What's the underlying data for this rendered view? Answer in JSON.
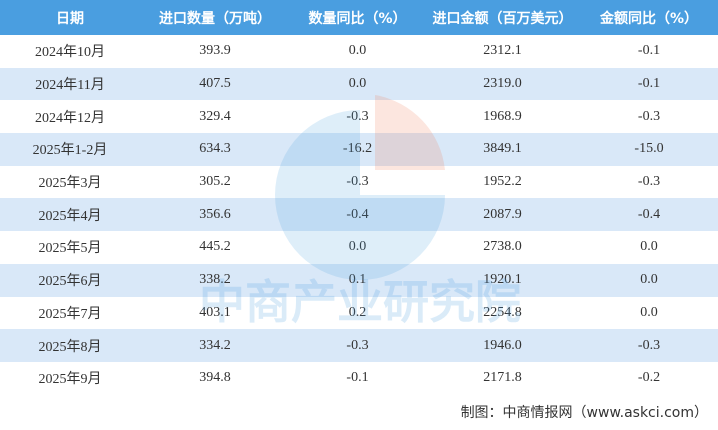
{
  "table": {
    "header": [
      "日期",
      "进口数量（万吨）",
      "数量同比（%）",
      "进口金额（百万美元）",
      "金额同比（%）"
    ],
    "rows": [
      [
        "2024年10月",
        "393.9",
        "0.0",
        "2312.1",
        "-0.1"
      ],
      [
        "2024年11月",
        "407.5",
        "0.0",
        "2319.0",
        "-0.1"
      ],
      [
        "2024年12月",
        "329.4",
        "-0.3",
        "1968.9",
        "-0.3"
      ],
      [
        "2025年1-2月",
        "634.3",
        "-16.2",
        "3849.1",
        "-15.0"
      ],
      [
        "2025年3月",
        "305.2",
        "-0.3",
        "1952.2",
        "-0.3"
      ],
      [
        "2025年4月",
        "356.6",
        "-0.4",
        "2087.9",
        "-0.4"
      ],
      [
        "2025年5月",
        "445.2",
        "0.0",
        "2738.0",
        "0.0"
      ],
      [
        "2025年6月",
        "338.2",
        "0.1",
        "1920.1",
        "0.0"
      ],
      [
        "2025年7月",
        "403.1",
        "0.2",
        "2254.8",
        "0.0"
      ],
      [
        "2025年8月",
        "334.2",
        "-0.3",
        "1946.0",
        "-0.3"
      ],
      [
        "2025年9月",
        "394.8",
        "-0.1",
        "2171.8",
        "-0.2"
      ]
    ]
  },
  "watermark": "中商产业研究院",
  "footer": "制图：中商情报网（www.askci.com）"
}
